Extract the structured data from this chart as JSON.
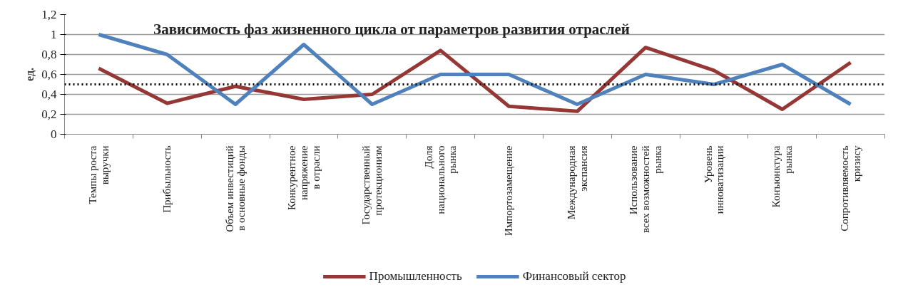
{
  "chart_data": {
    "type": "line",
    "title": "Зависимость фаз жизненного цикла от параметров развития отраслей",
    "ylabel": "ед.",
    "categories": [
      "Темпы роста\nвыручки",
      "Прибыльность",
      "Объем инвестиций\nв основные фонды",
      "Конкурентное\nнапряжение\nв отрасли",
      "Государственный\nпротекционизм",
      "Доля\nнационального\nрынка",
      "Импортозамещение",
      "Международная\nэкспансия",
      "Использование\nвсех возможностей\nрынка",
      "Уровень\nинноватизации",
      "Конъюнктура\nрынка",
      "Сопротивляемость\nкризису"
    ],
    "series": [
      {
        "name": "Промышленность",
        "color": "#953735",
        "values": [
          0.66,
          0.31,
          0.48,
          0.35,
          0.4,
          0.84,
          0.28,
          0.23,
          0.87,
          0.64,
          0.25,
          0.72
        ]
      },
      {
        "name": "Финансовый сектор",
        "color": "#4f81bd",
        "values": [
          1.0,
          0.8,
          0.3,
          0.9,
          0.3,
          0.6,
          0.6,
          0.3,
          0.6,
          0.5,
          0.7,
          0.3
        ]
      }
    ],
    "ylim": [
      0,
      1.2
    ],
    "yticks": [
      {
        "value": 0,
        "label": "0"
      },
      {
        "value": 0.2,
        "label": "0,2"
      },
      {
        "value": 0.4,
        "label": "0,4"
      },
      {
        "value": 0.6,
        "label": "0,6"
      },
      {
        "value": 0.8,
        "label": "0,8"
      },
      {
        "value": 1,
        "label": "1"
      },
      {
        "value": 1.2,
        "label": "1,2"
      }
    ],
    "ref_lines": [
      {
        "axis": "y",
        "value": 0.5,
        "label": null,
        "color": "#000000",
        "line_style": "dotted"
      }
    ],
    "grid": "y",
    "legend": "bottom",
    "line_style": "solid",
    "marker": "none"
  }
}
